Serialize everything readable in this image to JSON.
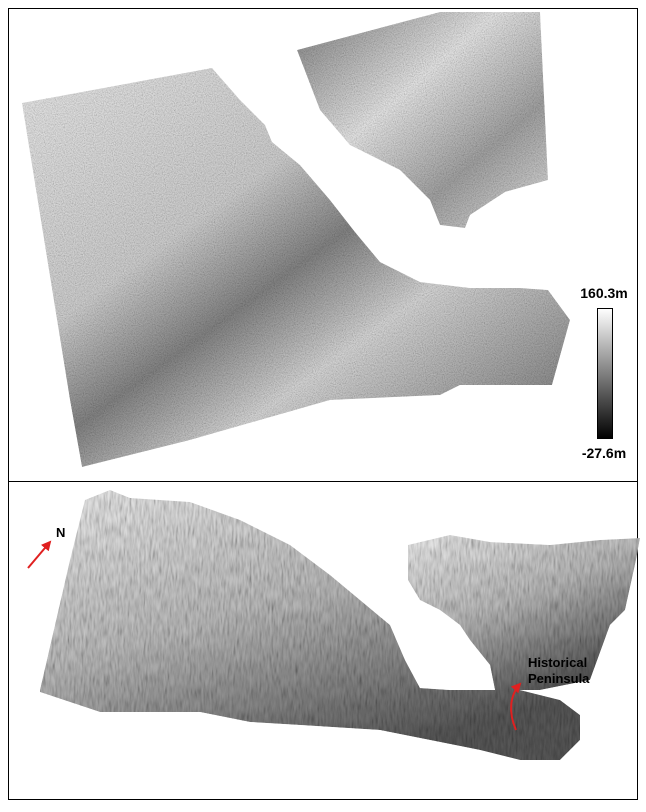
{
  "legend": {
    "max_label": "160.3m",
    "min_label": "-27.6m"
  },
  "lower_panel": {
    "north_label": "N",
    "annotation": [
      "Historical",
      "Peninsula"
    ]
  }
}
